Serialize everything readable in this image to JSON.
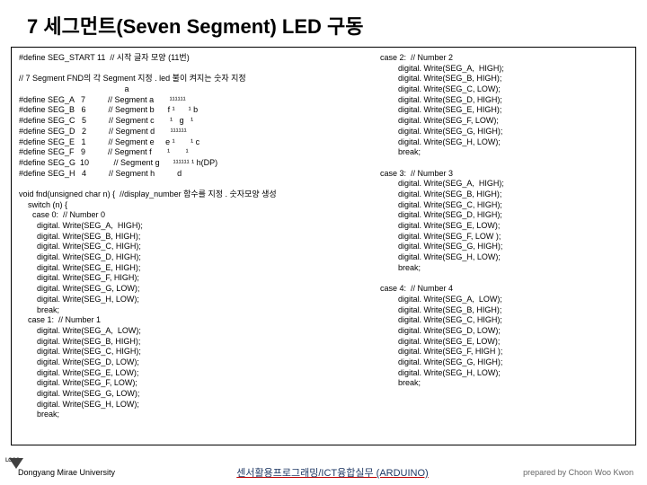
{
  "title": {
    "prefix": "7",
    "korean1": " 세그먼트",
    "english": "(Seven Segment) LED",
    "korean2": " 구동"
  },
  "colLeft": "#define SEG_START 11  // 시작 글자 모양 (11번)\n\n// 7 Segment FND의 각 Segment 지정 . led 불이 켜지는 숫자 지정\n                                               a\n#define SEG_A   7          // Segment a       ¹¹¹¹¹¹\n#define SEG_B   6          // Segment b      f ¹      ¹ b\n#define SEG_C   5          // Segment c       ¹   g   ¹\n#define SEG_D   2          // Segment d       ¹¹¹¹¹¹\n#define SEG_E   1          // Segment e     e ¹       ¹ c\n#define SEG_F   9          // Segment f       ¹       ¹\n#define SEG_G  10           // Segment g      ¹¹¹¹¹¹ ¹ h(DP)\n#define SEG_H   4          // Segment h          d\n\nvoid fnd(unsigned char n) {  //display_number 함수를 지정 . 숫자모양 생성\n    switch (n) {\n      case 0:  // Number 0\n        digital. Write(SEG_A,  HIGH);\n        digital. Write(SEG_B, HIGH);\n        digital. Write(SEG_C, HIGH);\n        digital. Write(SEG_D, HIGH);\n        digital. Write(SEG_E, HIGH);\n        digital. Write(SEG_F, HIGH);\n        digital. Write(SEG_G, LOW);\n        digital. Write(SEG_H, LOW);\n        break;\n    case 1:  // Number 1\n        digital. Write(SEG_A,  LOW);\n        digital. Write(SEG_B, HIGH);\n        digital. Write(SEG_C, HIGH);\n        digital. Write(SEG_D, LOW);\n        digital. Write(SEG_E, LOW);\n        digital. Write(SEG_F, LOW);\n        digital. Write(SEG_G, LOW);\n        digital. Write(SEG_H, LOW);\n        break;",
  "colRight": "case 2:  // Number 2\n        digital. Write(SEG_A,  HIGH);\n        digital. Write(SEG_B, HIGH);\n        digital. Write(SEG_C, LOW);\n        digital. Write(SEG_D, HIGH);\n        digital. Write(SEG_E, HIGH);\n        digital. Write(SEG_F, LOW);\n        digital. Write(SEG_G, HIGH);\n        digital. Write(SEG_H, LOW);\n        break;\n\ncase 3:  // Number 3\n        digital. Write(SEG_A,  HIGH);\n        digital. Write(SEG_B, HIGH);\n        digital. Write(SEG_C, HIGH);\n        digital. Write(SEG_D, HIGH);\n        digital. Write(SEG_E, LOW);\n        digital. Write(SEG_F, LOW );\n        digital. Write(SEG_G, HIGH);\n        digital. Write(SEG_H, LOW);\n        break;\n\ncase 4:  // Number 4\n        digital. Write(SEG_A,  LOW);\n        digital. Write(SEG_B, HIGH);\n        digital. Write(SEG_C, HIGH);\n        digital. Write(SEG_D, LOW);\n        digital. Write(SEG_E, LOW);\n        digital. Write(SEG_F, HIGH );\n        digital. Write(SEG_G, HIGH);\n        digital. Write(SEG_H, LOW);\n        break;",
  "footer": {
    "left": "Dongyang Mirae University",
    "center": "센서활용프로그래밍/ICT융합실무 (ARDUINO)",
    "right": "prepared by Choon Woo Kwon",
    "logo": "LOGO"
  }
}
